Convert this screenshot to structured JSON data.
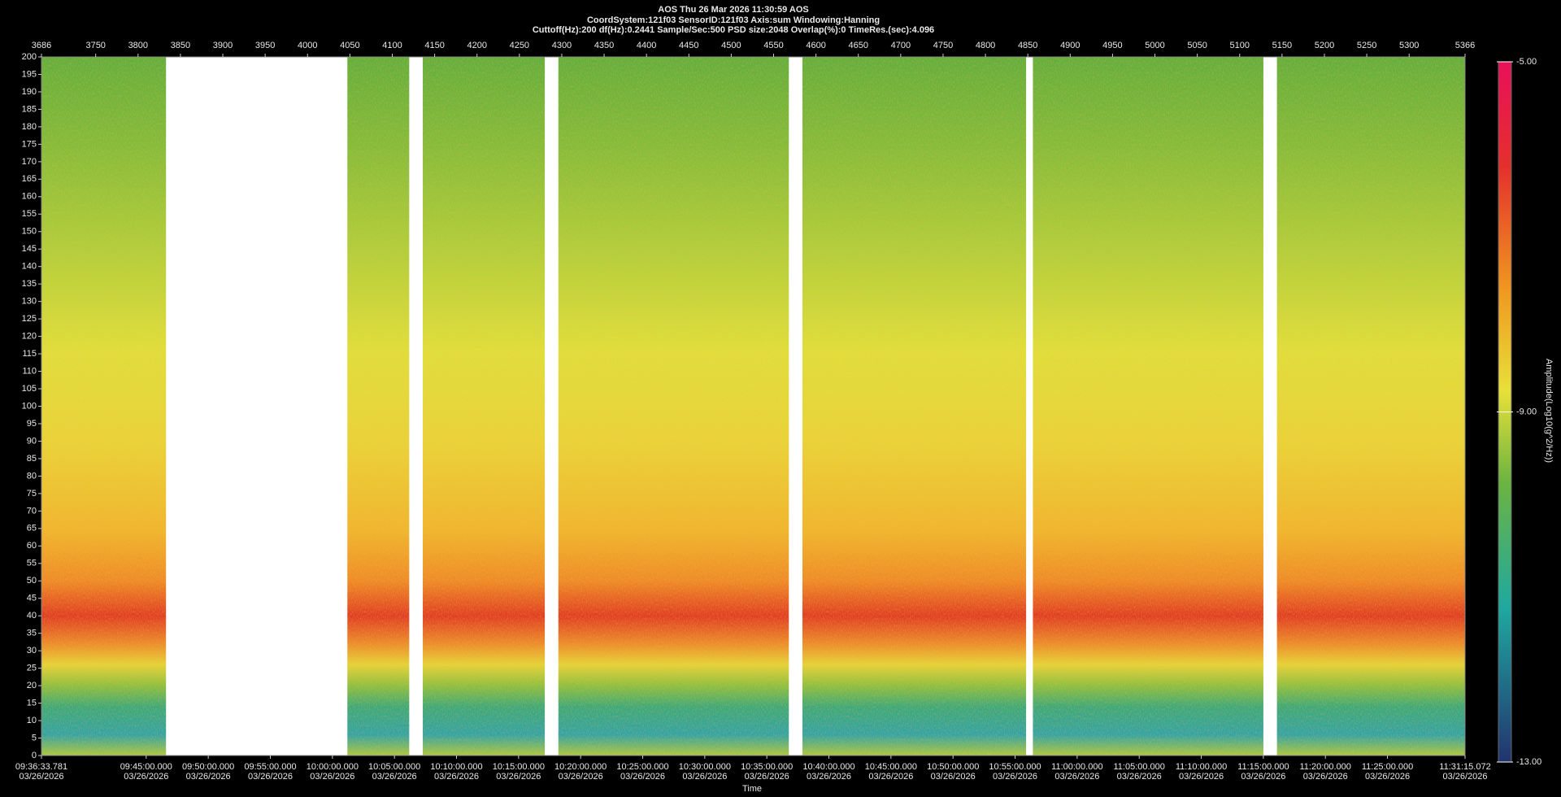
{
  "chart_data": {
    "type": "spectrogram",
    "title": "AOS  Thu 26 Mar 2026 11:30:59  AOS",
    "subtitle": "CoordSystem:121f03   SensorID:121f03    Axis:sum    Windowing:Hanning",
    "parameters": "Cuttoff(Hz):200     df(Hz):0.2441     Sample/Sec:500     PSD size:2048     Overlap(%):0     TimeRes.(sec):4.096",
    "xlabel": "Time",
    "colorbar_label": "Amplitude(Log10(g^2/Hz))",
    "xlim": [
      3686,
      5366
    ],
    "xticks": [
      3686,
      3750,
      3800,
      3850,
      3900,
      3950,
      4000,
      4050,
      4100,
      4150,
      4200,
      4250,
      4300,
      4350,
      4400,
      4450,
      4500,
      4550,
      4600,
      4650,
      4700,
      4750,
      4800,
      4850,
      4900,
      4950,
      5000,
      5050,
      5100,
      5150,
      5200,
      5250,
      5300,
      5366
    ],
    "gaps": [
      [
        3833,
        4047
      ],
      [
        4120,
        4136
      ],
      [
        4280,
        4296
      ],
      [
        4568,
        4584
      ],
      [
        4848,
        4856
      ],
      [
        5128,
        5144
      ]
    ],
    "ylim": [
      0,
      200
    ],
    "yticks": [
      0,
      5,
      10,
      15,
      20,
      25,
      30,
      35,
      40,
      45,
      50,
      55,
      60,
      65,
      70,
      75,
      80,
      85,
      90,
      95,
      100,
      105,
      110,
      115,
      120,
      125,
      130,
      135,
      140,
      145,
      150,
      155,
      160,
      165,
      170,
      175,
      180,
      185,
      190,
      195,
      200
    ],
    "x2lim": [
      34593.781,
      41475.072
    ],
    "x2ticks": [
      {
        "value": 34593.781,
        "label": "09:36:33.781",
        "date": "03/26/2026"
      },
      {
        "value": 35100,
        "label": "09:45:00.000",
        "date": "03/26/2026"
      },
      {
        "value": 35400,
        "label": "09:50:00.000",
        "date": "03/26/2026"
      },
      {
        "value": 35700,
        "label": "09:55:00.000",
        "date": "03/26/2026"
      },
      {
        "value": 36000,
        "label": "10:00:00.000",
        "date": "03/26/2026"
      },
      {
        "value": 36300,
        "label": "10:05:00.000",
        "date": "03/26/2026"
      },
      {
        "value": 36600,
        "label": "10:10:00.000",
        "date": "03/26/2026"
      },
      {
        "value": 36900,
        "label": "10:15:00.000",
        "date": "03/26/2026"
      },
      {
        "value": 37200,
        "label": "10:20:00.000",
        "date": "03/26/2026"
      },
      {
        "value": 37500,
        "label": "10:25:00.000",
        "date": "03/26/2026"
      },
      {
        "value": 37800,
        "label": "10:30:00.000",
        "date": "03/26/2026"
      },
      {
        "value": 38100,
        "label": "10:35:00.000",
        "date": "03/26/2026"
      },
      {
        "value": 38400,
        "label": "10:40:00.000",
        "date": "03/26/2026"
      },
      {
        "value": 38700,
        "label": "10:45:00.000",
        "date": "03/26/2026"
      },
      {
        "value": 39000,
        "label": "10:50:00.000",
        "date": "03/26/2026"
      },
      {
        "value": 39300,
        "label": "10:55:00.000",
        "date": "03/26/2026"
      },
      {
        "value": 39600,
        "label": "11:00:00.000",
        "date": "03/26/2026"
      },
      {
        "value": 39900,
        "label": "11:05:00.000",
        "date": "03/26/2026"
      },
      {
        "value": 40200,
        "label": "11:10:00.000",
        "date": "03/26/2026"
      },
      {
        "value": 40500,
        "label": "11:15:00.000",
        "date": "03/26/2026"
      },
      {
        "value": 40800,
        "label": "11:20:00.000",
        "date": "03/26/2026"
      },
      {
        "value": 41100,
        "label": "11:25:00.000",
        "date": "03/26/2026"
      },
      {
        "value": 41475.072,
        "label": "11:31:15.072",
        "date": "03/26/2026"
      }
    ],
    "colorbar_lim": [
      -13,
      -5
    ],
    "colorbar_ticks": [
      {
        "value": -13,
        "label": "-13.00"
      },
      {
        "value": -9,
        "label": "-9.00"
      },
      {
        "value": -5,
        "label": "-5.00"
      }
    ]
  }
}
